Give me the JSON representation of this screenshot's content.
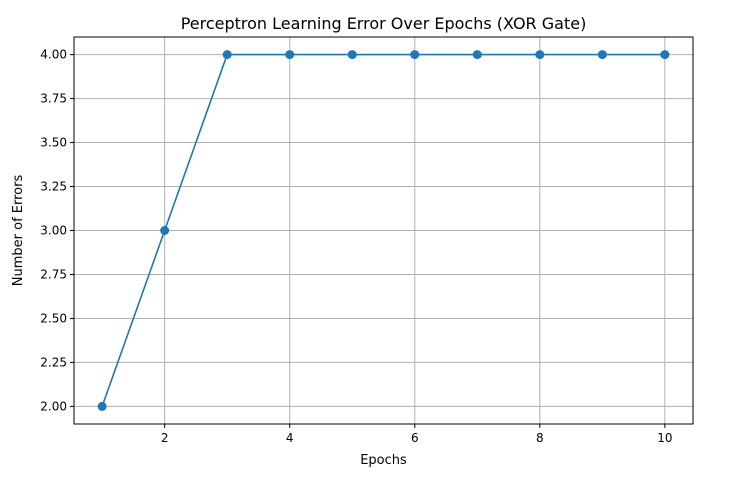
{
  "chart_data": {
    "type": "line",
    "title": "Perceptron Learning Error Over Epochs (XOR Gate)",
    "xlabel": "Epochs",
    "ylabel": "Number of Errors",
    "xlim": [
      0.55,
      10.45
    ],
    "ylim": [
      1.9,
      4.1
    ],
    "x_ticks": [
      2,
      4,
      6,
      8,
      10
    ],
    "x_tick_labels": [
      "2",
      "4",
      "6",
      "8",
      "10"
    ],
    "y_ticks": [
      2.0,
      2.25,
      2.5,
      2.75,
      3.0,
      3.25,
      3.5,
      3.75,
      4.0
    ],
    "y_tick_labels": [
      "2.00",
      "2.25",
      "2.50",
      "2.75",
      "3.00",
      "3.25",
      "3.50",
      "3.75",
      "4.00"
    ],
    "grid": true,
    "marker": "circle",
    "series": [
      {
        "x": [
          1,
          2,
          3,
          4,
          5,
          6,
          7,
          8,
          9,
          10
        ],
        "values": [
          2,
          3,
          4,
          4,
          4,
          4,
          4,
          4,
          4,
          4
        ],
        "color": "#1f77b4"
      }
    ]
  }
}
